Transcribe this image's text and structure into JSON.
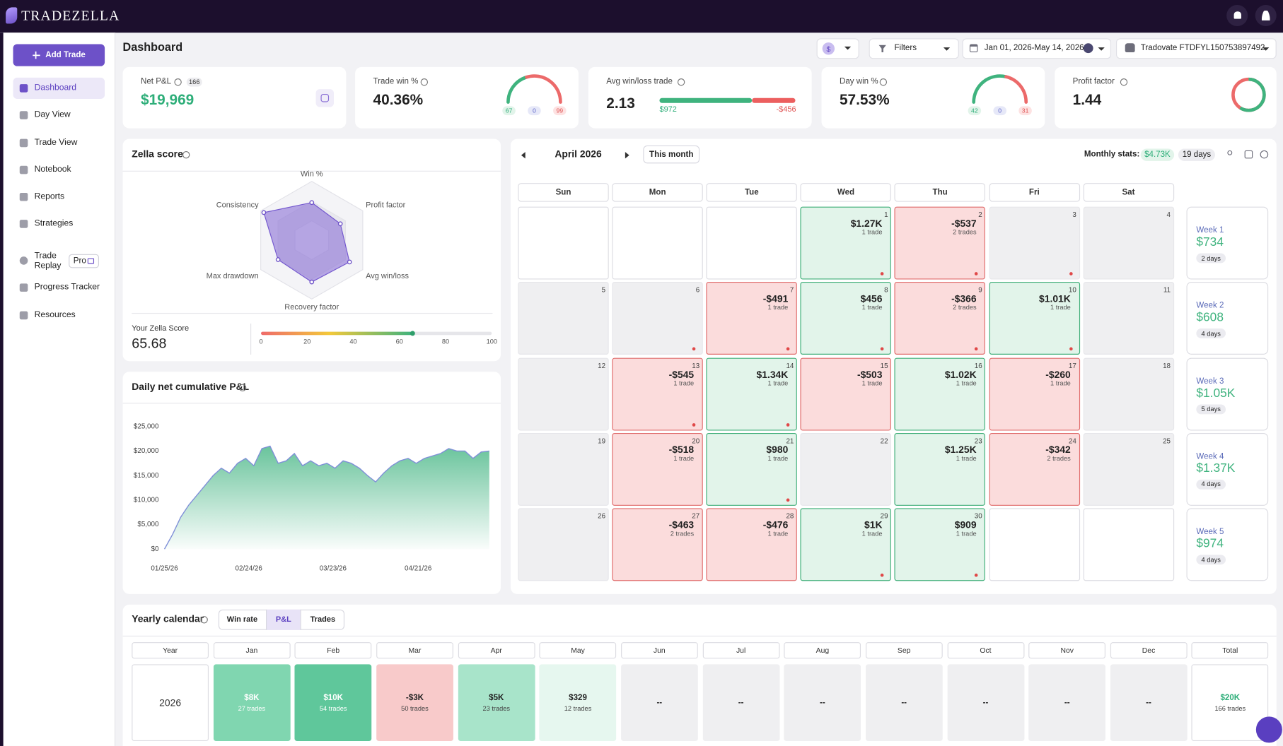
{
  "header": {
    "logo": "TRADEZELLA"
  },
  "sidebar": {
    "add_trade": "Add Trade",
    "items": [
      "Dashboard",
      "Day View",
      "Trade View",
      "Notebook",
      "Reports",
      "Strategies",
      "Trade Replay",
      "Progress Tracker",
      "Resources"
    ],
    "pro_badge": "Pro"
  },
  "toolbar": {
    "title": "Dashboard",
    "currency": "$",
    "filters": "Filters",
    "date_range": "Jan 01, 2026-May 14, 2026",
    "account": "Tradovate FTDFYL150753897492"
  },
  "stats": [
    {
      "label": "Net P&L",
      "count": "166",
      "value": "$19,969"
    },
    {
      "label": "Trade win %",
      "value": "40.36%",
      "gauge": [
        67,
        0,
        99
      ]
    },
    {
      "label": "Avg win/loss trade",
      "value": "2.13",
      "win": {
        "value": 972,
        "label": "$972"
      },
      "loss": {
        "value": -456,
        "label": "-$456"
      }
    },
    {
      "label": "Day win %",
      "value": "57.53%",
      "gauge": [
        42,
        0,
        31
      ]
    },
    {
      "label": "Profit factor",
      "value": 1.44
    }
  ],
  "zella": {
    "title": "Zella score",
    "type": "radar",
    "axes": [
      "Win %",
      "Profit factor",
      "Avg win/loss",
      "Recovery factor",
      "Max drawdown",
      "Consistency"
    ],
    "values": [
      64,
      56,
      74,
      71,
      66,
      94
    ],
    "rlim": [
      0,
      100
    ],
    "color": "#8a6fd6",
    "score_label": "Your Zella Score",
    "score": 65.68,
    "scale_ticks": [
      0,
      20,
      40,
      60,
      80,
      100
    ]
  },
  "pnl_chart": {
    "type": "area",
    "title": "Daily net cumulative P&L",
    "color": "#4fb98a",
    "values": [
      0,
      3000,
      6500,
      9000,
      11000,
      13000,
      15000,
      16500,
      15500,
      17500,
      18500,
      17000,
      20500,
      21000,
      17500,
      18000,
      19500,
      17000,
      18000,
      17000,
      17500,
      16500,
      18000,
      17500,
      16500,
      15000,
      13700,
      15500,
      17000,
      18000,
      18500,
      17500,
      18500,
      19000,
      19500,
      20500,
      20000,
      20000,
      18500,
      19800,
      20000
    ],
    "ylim": [
      0,
      25000
    ],
    "yticks": [
      {
        "value": 0,
        "label": "$0"
      },
      {
        "value": 5000,
        "label": "$5,000"
      },
      {
        "value": 10000,
        "label": "$10,000"
      },
      {
        "value": 15000,
        "label": "$15,000"
      },
      {
        "value": 20000,
        "label": "$20,000"
      },
      {
        "value": 25000,
        "label": "$25,000"
      }
    ],
    "x_labels": [
      "01/25/26",
      "02/24/26",
      "03/23/26",
      "04/21/26"
    ]
  },
  "calendar": {
    "month": "April 2026",
    "this_month": "This month",
    "stats_label": "Monthly stats:",
    "stats_value": "$4.73K",
    "stats_days": "19 days",
    "weekdays": [
      "Sun",
      "Mon",
      "Tue",
      "Wed",
      "Thu",
      "Fri",
      "Sat"
    ],
    "cells": [
      null,
      null,
      null,
      {
        "day": "1",
        "pnl": "$1.27K",
        "trades": "1 trade",
        "status": "win",
        "dot": true
      },
      {
        "day": "2",
        "pnl": "-$537",
        "trades": "2 trades",
        "status": "loss",
        "dot": true
      },
      {
        "day": "3",
        "status": "none",
        "dot": true
      },
      {
        "day": "4",
        "status": "none",
        "dot": false
      },
      {
        "day": "5",
        "status": "none",
        "dot": false
      },
      {
        "day": "6",
        "status": "none",
        "dot": true
      },
      {
        "day": "7",
        "pnl": "-$491",
        "trades": "1 trade",
        "status": "loss",
        "dot": true
      },
      {
        "day": "8",
        "pnl": "$456",
        "trades": "1 trade",
        "status": "win",
        "dot": true
      },
      {
        "day": "9",
        "pnl": "-$366",
        "trades": "2 trades",
        "status": "loss",
        "dot": true
      },
      {
        "day": "10",
        "pnl": "$1.01K",
        "trades": "1 trade",
        "status": "win",
        "dot": true
      },
      {
        "day": "11",
        "status": "none",
        "dot": false
      },
      {
        "day": "12",
        "status": "none",
        "dot": false
      },
      {
        "day": "13",
        "pnl": "-$545",
        "trades": "1 trade",
        "status": "loss",
        "dot": true
      },
      {
        "day": "14",
        "pnl": "$1.34K",
        "trades": "1 trade",
        "status": "win",
        "dot": true
      },
      {
        "day": "15",
        "pnl": "-$503",
        "trades": "1 trade",
        "status": "loss",
        "dot": false
      },
      {
        "day": "16",
        "pnl": "$1.02K",
        "trades": "1 trade",
        "status": "win",
        "dot": false
      },
      {
        "day": "17",
        "pnl": "-$260",
        "trades": "1 trade",
        "status": "loss",
        "dot": false
      },
      {
        "day": "18",
        "status": "none",
        "dot": false
      },
      {
        "day": "19",
        "status": "none",
        "dot": false
      },
      {
        "day": "20",
        "pnl": "-$518",
        "trades": "1 trade",
        "status": "loss",
        "dot": false
      },
      {
        "day": "21",
        "pnl": "$980",
        "trades": "1 trade",
        "status": "win",
        "dot": true
      },
      {
        "day": "22",
        "status": "none",
        "dot": false
      },
      {
        "day": "23",
        "pnl": "$1.25K",
        "trades": "1 trade",
        "status": "win",
        "dot": false
      },
      {
        "day": "24",
        "pnl": "-$342",
        "trades": "2 trades",
        "status": "loss",
        "dot": false
      },
      {
        "day": "25",
        "status": "none",
        "dot": false
      },
      {
        "day": "26",
        "status": "none",
        "dot": false
      },
      {
        "day": "27",
        "pnl": "-$463",
        "trades": "2 trades",
        "status": "loss",
        "dot": false
      },
      {
        "day": "28",
        "pnl": "-$476",
        "trades": "1 trade",
        "status": "loss",
        "dot": false
      },
      {
        "day": "29",
        "pnl": "$1K",
        "trades": "1 trade",
        "status": "win",
        "dot": true
      },
      {
        "day": "30",
        "pnl": "$909",
        "trades": "1 trade",
        "status": "win",
        "dot": true
      },
      null,
      null
    ],
    "weeks": [
      {
        "label": "Week 1",
        "value": "$734",
        "days": "2 days"
      },
      {
        "label": "Week 2",
        "value": "$608",
        "days": "4 days"
      },
      {
        "label": "Week 3",
        "value": "$1.05K",
        "days": "5 days"
      },
      {
        "label": "Week 4",
        "value": "$1.37K",
        "days": "4 days"
      },
      {
        "label": "Week 5",
        "value": "$974",
        "days": "4 days"
      }
    ]
  },
  "yearly": {
    "title": "Yearly calendar",
    "tabs": [
      "Win rate",
      "P&L",
      "Trades"
    ],
    "year_header": "Year",
    "year": "2026",
    "months": [
      {
        "month": "Jan",
        "value": "$8K",
        "trades": "27 trades",
        "color": "#80d6b0"
      },
      {
        "month": "Feb",
        "value": "$10K",
        "trades": "54 trades",
        "color": "#5fc79b"
      },
      {
        "month": "Mar",
        "value": "-$3K",
        "trades": "50 trades",
        "color": "#f8caca"
      },
      {
        "month": "Apr",
        "value": "$5K",
        "trades": "23 trades",
        "color": "#a8e4ca"
      },
      {
        "month": "May",
        "value": "$329",
        "trades": "12 trades",
        "color": "#e6f7ef"
      },
      {
        "month": "Jun",
        "value": "--",
        "color": "#efeff1"
      },
      {
        "month": "Jul",
        "value": "--",
        "color": "#efeff1"
      },
      {
        "month": "Aug",
        "value": "--",
        "color": "#efeff1"
      },
      {
        "month": "Sep",
        "value": "--",
        "color": "#efeff1"
      },
      {
        "month": "Oct",
        "value": "--",
        "color": "#efeff1"
      },
      {
        "month": "Nov",
        "value": "--",
        "color": "#efeff1"
      },
      {
        "month": "Dec",
        "value": "--",
        "color": "#efeff1"
      }
    ],
    "total_header": "Total",
    "total_value": "$20K",
    "total_trades": "166 trades"
  }
}
